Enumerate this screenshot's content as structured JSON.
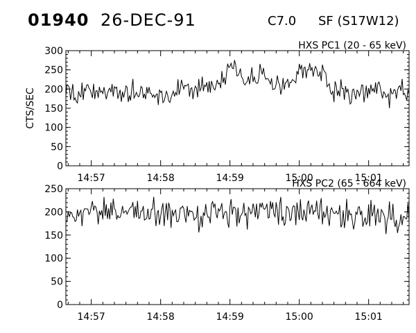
{
  "header": {
    "event_id": "01940",
    "date": "26-DEC-91",
    "flare_class": "C7.0",
    "location": "SF (S17W12)"
  },
  "chart_data": [
    {
      "type": "line",
      "title": "HXS PC1 (20 - 65 keV)",
      "ylabel": "CTS/SEC",
      "xlabel": "",
      "xlim": [
        "14:56:38",
        "15:01:35"
      ],
      "ylim": [
        0,
        300
      ],
      "yticks": [
        0,
        50,
        100,
        150,
        200,
        250,
        300
      ],
      "xticks": [
        "14:57",
        "14:58",
        "14:59",
        "15:00",
        "15:01"
      ],
      "grid": false,
      "series": [
        {
          "x": [
            "14:56:38",
            "14:56:48",
            "14:56:58",
            "14:57:08",
            "14:57:18",
            "14:57:28",
            "14:57:38",
            "14:57:48",
            "14:57:58",
            "14:58:08",
            "14:58:18",
            "14:58:28",
            "14:58:38",
            "14:58:48",
            "14:58:53",
            "14:58:58",
            "14:59:03",
            "14:59:08",
            "14:59:13",
            "14:59:18",
            "14:59:23",
            "14:59:28",
            "14:59:33",
            "14:59:38",
            "14:59:43",
            "14:59:48",
            "14:59:53",
            "14:59:58",
            "15:00:03",
            "15:00:08",
            "15:00:13",
            "15:00:18",
            "15:00:23",
            "15:00:28",
            "15:00:38",
            "15:00:48",
            "15:00:58",
            "15:01:08",
            "15:01:18",
            "15:01:28",
            "15:01:35"
          ],
          "y": [
            195,
            182,
            205,
            188,
            198,
            185,
            200,
            190,
            195,
            186,
            202,
            192,
            205,
            218,
            228,
            252,
            262,
            238,
            222,
            230,
            232,
            250,
            226,
            212,
            200,
            208,
            222,
            240,
            255,
            250,
            243,
            246,
            232,
            200,
            198,
            192,
            188,
            196,
            186,
            198,
            192
          ]
        }
      ]
    },
    {
      "type": "line",
      "title": "HXS PC2 (65 - 664 keV)",
      "ylabel": "",
      "xlabel": "",
      "xlim": [
        "14:56:38",
        "15:01:35"
      ],
      "ylim": [
        0,
        250
      ],
      "yticks": [
        0,
        50,
        100,
        150,
        200,
        250
      ],
      "xticks": [
        "14:57",
        "14:58",
        "14:59",
        "15:00",
        "15:01"
      ],
      "grid": false,
      "series": [
        {
          "x": [
            "14:56:38",
            "14:56:48",
            "14:56:58",
            "14:57:08",
            "14:57:18",
            "14:57:28",
            "14:57:38",
            "14:57:48",
            "14:57:58",
            "14:58:08",
            "14:58:18",
            "14:58:28",
            "14:58:38",
            "14:58:48",
            "14:58:58",
            "14:59:08",
            "14:59:18",
            "14:59:28",
            "14:59:38",
            "14:59:48",
            "14:59:58",
            "15:00:08",
            "15:00:18",
            "15:00:28",
            "15:00:38",
            "15:00:48",
            "15:00:58",
            "15:01:08",
            "15:01:18",
            "15:01:28",
            "15:01:35"
          ],
          "y": [
            192,
            198,
            205,
            200,
            208,
            198,
            202,
            195,
            200,
            192,
            198,
            196,
            200,
            202,
            198,
            195,
            200,
            204,
            198,
            194,
            202,
            198,
            196,
            194,
            192,
            190,
            188,
            192,
            185,
            190,
            188
          ]
        }
      ]
    }
  ]
}
